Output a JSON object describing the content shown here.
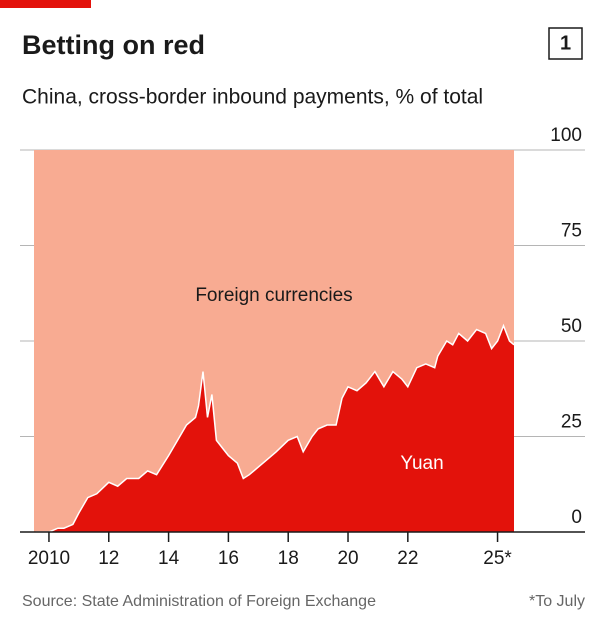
{
  "chart_data": {
    "type": "area",
    "title": "Betting on red",
    "chart_number": "1",
    "subtitle": "China, cross-border inbound payments, % of total",
    "source": "Source: State Administration of Foreign Exchange",
    "footnote": "*To July",
    "background_label": "Foreign currencies",
    "background_color": "#f8ab92",
    "x": [
      2009.55,
      2010.0,
      2010.3,
      2010.5,
      2010.8,
      2011.0,
      2011.3,
      2011.6,
      2012.0,
      2012.3,
      2012.6,
      2013.0,
      2013.3,
      2013.6,
      2014.0,
      2014.3,
      2014.6,
      2014.9,
      2015.0,
      2015.15,
      2015.3,
      2015.45,
      2015.6,
      2015.8,
      2016.0,
      2016.3,
      2016.5,
      2016.7,
      2017.0,
      2017.3,
      2017.6,
      2018.0,
      2018.3,
      2018.5,
      2018.8,
      2019.0,
      2019.3,
      2019.6,
      2019.8,
      2020.0,
      2020.3,
      2020.6,
      2020.9,
      2021.2,
      2021.5,
      2021.8,
      2022.0,
      2022.3,
      2022.6,
      2022.9,
      2023.0,
      2023.3,
      2023.5,
      2023.7,
      2024.0,
      2024.3,
      2024.6,
      2024.8,
      2025.0,
      2025.2,
      2025.4,
      2025.55
    ],
    "series": [
      {
        "name": "Yuan",
        "color": "#e3120b",
        "values": [
          0,
          0,
          1,
          1,
          2,
          5,
          9,
          10,
          13,
          12,
          14,
          14,
          16,
          15,
          20,
          24,
          28,
          30,
          33,
          42,
          30,
          36,
          24,
          22,
          20,
          18,
          14,
          15,
          17,
          19,
          21,
          24,
          25,
          21,
          25,
          27,
          28,
          28,
          35,
          38,
          37,
          39,
          42,
          38,
          42,
          40,
          38,
          43,
          44,
          43,
          46,
          50,
          49,
          52,
          50,
          53,
          52,
          48,
          50,
          54,
          50,
          49
        ]
      }
    ],
    "xlim": [
      2009.5,
      2025.55
    ],
    "xticks": [
      2010,
      {
        "value": 2012,
        "label": "12"
      },
      {
        "value": 2014,
        "label": "14"
      },
      {
        "value": 2016,
        "label": "16"
      },
      {
        "value": 2018,
        "label": "18"
      },
      {
        "value": 2020,
        "label": "20"
      },
      {
        "value": 2022,
        "label": "22"
      },
      {
        "value": 2025,
        "label": "25*"
      }
    ],
    "ylim": [
      0,
      100
    ],
    "yticks": [
      0,
      25,
      50,
      75,
      100
    ],
    "grid": true
  }
}
